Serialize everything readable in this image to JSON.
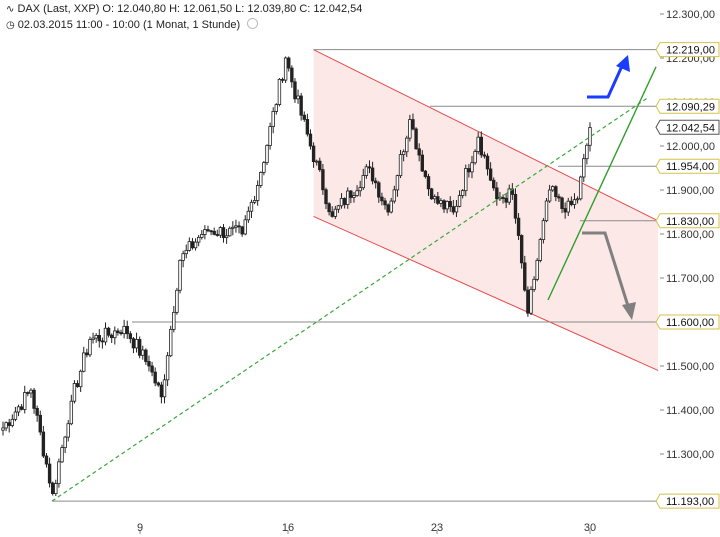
{
  "header": {
    "instrument_icon": "instrument-chart-icon",
    "line1": "DAX (Last, XXP)  O: 12.040,80  H: 12.061,50  L: 12.039,80  C: 12.042,54",
    "line2": "02.03.2015 11:00 - 10:00 (1 Monat, 1 Stunde)",
    "clock_icon": "clock-icon",
    "settings_icon": "settings-icon"
  },
  "colors": {
    "up_candle": "#ffffff",
    "down_candle": "#222222",
    "channel": "#e84a4a",
    "channel_fill": "#fde8e8",
    "trend_green": "#2e9e2e",
    "dashed_green": "#3aa83a",
    "blue_arrow": "#1a3cff",
    "gray_arrow": "#808080",
    "level_line": "#8a8a8a",
    "label_border": "#d4c24a"
  },
  "chart_data": {
    "type": "candlestick",
    "y_axis": {
      "range": [
        11190,
        12300
      ],
      "ticks": [
        11300,
        11400,
        11500,
        11600,
        11700,
        11800,
        11900,
        12000,
        12100,
        12200,
        12300
      ],
      "tick_labels": [
        "11.300,00",
        "11.400,00",
        "11.500,00",
        "11.600,00",
        "11.700,00",
        "11.800,00",
        "11.900,00",
        "12.000,00",
        "12.100,00",
        "12.200,00",
        "12.300,00"
      ]
    },
    "x_axis": {
      "ticks": [
        {
          "label": "9"
        },
        {
          "label": "16"
        },
        {
          "label": "23"
        },
        {
          "label": "30"
        }
      ]
    },
    "levels": [
      {
        "value": 12219,
        "label": "12.219,00"
      },
      {
        "value": 12090.29,
        "label": "12.090,29"
      },
      {
        "value": 12042.54,
        "label": "12.042,54",
        "current": true
      },
      {
        "value": 11954,
        "label": "11.954,00"
      },
      {
        "value": 11830,
        "label": "11.830,00"
      },
      {
        "value": 11600,
        "label": "11.600,00"
      },
      {
        "value": 11193,
        "label": "11.193,00"
      }
    ],
    "segments": [
      {
        "from": 11350,
        "to": 11445,
        "bars": 10
      },
      {
        "from": 11445,
        "to": 11210,
        "bars": 7
      },
      {
        "from": 11210,
        "to": 11420,
        "bars": 6
      },
      {
        "from": 11420,
        "to": 11560,
        "bars": 6
      },
      {
        "from": 11560,
        "to": 11570,
        "bars": 6
      },
      {
        "from": 11570,
        "to": 11590,
        "bars": 5
      },
      {
        "from": 11590,
        "to": 11500,
        "bars": 8
      },
      {
        "from": 11500,
        "to": 11430,
        "bars": 4
      },
      {
        "from": 11430,
        "to": 11740,
        "bars": 6
      },
      {
        "from": 11740,
        "to": 11810,
        "bars": 8
      },
      {
        "from": 11810,
        "to": 11800,
        "bars": 12
      },
      {
        "from": 11800,
        "to": 11940,
        "bars": 6
      },
      {
        "from": 11940,
        "to": 12200,
        "bars": 8
      },
      {
        "from": 12200,
        "to": 12070,
        "bars": 5
      },
      {
        "from": 12070,
        "to": 11840,
        "bars": 10
      },
      {
        "from": 11840,
        "to": 11950,
        "bars": 12
      },
      {
        "from": 11950,
        "to": 11850,
        "bars": 6
      },
      {
        "from": 11850,
        "to": 12060,
        "bars": 7
      },
      {
        "from": 12060,
        "to": 11880,
        "bars": 7
      },
      {
        "from": 11880,
        "to": 11850,
        "bars": 7
      },
      {
        "from": 11850,
        "to": 12020,
        "bars": 8
      },
      {
        "from": 12020,
        "to": 11880,
        "bars": 6
      },
      {
        "from": 11880,
        "to": 11890,
        "bars": 5
      },
      {
        "from": 11890,
        "to": 11620,
        "bars": 5
      },
      {
        "from": 11620,
        "to": 11900,
        "bars": 7
      },
      {
        "from": 11900,
        "to": 11850,
        "bars": 5
      },
      {
        "from": 11850,
        "to": 11880,
        "bars": 4
      },
      {
        "from": 11880,
        "to": 12042,
        "bars": 4
      }
    ],
    "channel": {
      "upper_start": 12219,
      "upper_end": 11830,
      "lower_start": 11840,
      "lower_end": 11490
    },
    "dashed_trendline": {
      "start": 11193,
      "end": 12110
    },
    "green_trendline": {
      "start": 11650,
      "end": 12180
    },
    "arrows": [
      {
        "direction": "up",
        "color": "blue"
      },
      {
        "direction": "down",
        "color": "gray"
      }
    ]
  }
}
